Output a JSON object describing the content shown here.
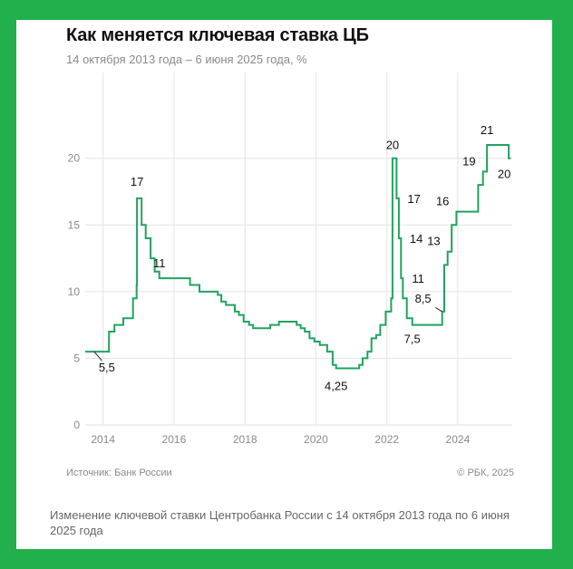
{
  "colors": {
    "background": "#21b04b",
    "line": "#21a35f",
    "grid": "#e3e3e3",
    "text": "#111111",
    "muted": "#8a8a8a"
  },
  "header": {
    "title": "Как меняется ключевая ставка ЦБ",
    "subtitle": "14 октября 2013 года – 6 июня 2025 года, %"
  },
  "footer": {
    "source": "Источник: Банк России",
    "copyright": "© РБК, 2025"
  },
  "caption": "Изменение ключевой ставки Центробанка России с 14 октября 2013 года по 6 июня 2025 года",
  "chart_data": {
    "type": "line",
    "step": true,
    "title": "Как меняется ключевая ставка ЦБ",
    "subtitle": "14 октября 2013 года – 6 июня 2025 года, %",
    "xlabel": "",
    "ylabel": "",
    "xlim": [
      "2013-07-01",
      "2025-07-15"
    ],
    "ylim": [
      0,
      21
    ],
    "grid": true,
    "x_ticks": [
      "2014",
      "2016",
      "2018",
      "2020",
      "2022",
      "2024"
    ],
    "x_ticks_at": [
      "2014-01-01",
      "2016-01-01",
      "2018-01-01",
      "2020-01-01",
      "2022-01-01",
      "2024-01-01"
    ],
    "y_ticks": [
      0,
      5,
      10,
      15,
      20
    ],
    "series": [
      {
        "x": [
          "2013-07-01",
          "2013-09-13",
          "2014-03-03",
          "2014-04-28",
          "2014-07-28",
          "2014-11-05",
          "2014-12-12",
          "2014-12-16",
          "2015-02-02",
          "2015-03-16",
          "2015-05-05",
          "2015-06-16",
          "2015-08-03",
          "2016-06-14",
          "2016-09-19",
          "2017-03-27",
          "2017-05-02",
          "2017-06-19",
          "2017-09-18",
          "2017-10-30",
          "2017-12-18",
          "2018-02-12",
          "2018-03-26",
          "2018-09-17",
          "2018-12-17",
          "2019-06-17",
          "2019-07-29",
          "2019-09-09",
          "2019-10-28",
          "2019-12-16",
          "2020-02-10",
          "2020-04-27",
          "2020-06-22",
          "2020-07-27",
          "2021-03-22",
          "2021-04-26",
          "2021-06-15",
          "2021-07-26",
          "2021-09-13",
          "2021-10-25",
          "2021-12-20",
          "2022-02-14",
          "2022-02-28",
          "2022-04-11",
          "2022-05-04",
          "2022-05-27",
          "2022-06-14",
          "2022-07-25",
          "2022-09-19",
          "2023-07-24",
          "2023-08-15",
          "2023-09-18",
          "2023-10-30",
          "2023-12-18",
          "2024-07-29",
          "2024-09-16",
          "2024-10-28",
          "2025-06-09",
          "2025-06-30"
        ],
        "values": [
          5.5,
          5.5,
          7.0,
          7.5,
          8.0,
          9.5,
          10.5,
          17.0,
          15.0,
          14.0,
          12.5,
          11.5,
          11.0,
          10.5,
          10.0,
          9.75,
          9.25,
          9.0,
          8.5,
          8.25,
          7.75,
          7.5,
          7.25,
          7.5,
          7.75,
          7.5,
          7.25,
          7.0,
          6.5,
          6.25,
          6.0,
          5.5,
          4.5,
          4.25,
          4.5,
          5.0,
          5.5,
          6.5,
          6.75,
          7.5,
          8.5,
          9.5,
          20.0,
          17.0,
          14.0,
          11.0,
          9.5,
          8.0,
          7.5,
          8.5,
          12.0,
          13.0,
          15.0,
          16.0,
          18.0,
          19.0,
          21.0,
          20.0,
          20.0
        ]
      }
    ],
    "annotations": [
      {
        "text": "5,5",
        "x": "2013-10-01",
        "y": 5.5
      },
      {
        "text": "17",
        "x": "2014-12-16",
        "y": 17
      },
      {
        "text": "11",
        "x": "2015-08-03",
        "y": 11
      },
      {
        "text": "4,25",
        "x": "2020-07-27",
        "y": 4.25
      },
      {
        "text": "20",
        "x": "2022-02-28",
        "y": 20
      },
      {
        "text": "17",
        "x": "2022-04-11",
        "y": 17
      },
      {
        "text": "14",
        "x": "2022-05-04",
        "y": 14
      },
      {
        "text": "11",
        "x": "2022-05-27",
        "y": 11
      },
      {
        "text": "7,5",
        "x": "2022-09-19",
        "y": 7.5
      },
      {
        "text": "8,5",
        "x": "2023-07-24",
        "y": 8.5
      },
      {
        "text": "13",
        "x": "2023-09-18",
        "y": 13
      },
      {
        "text": "16",
        "x": "2023-12-18",
        "y": 16
      },
      {
        "text": "19",
        "x": "2024-09-16",
        "y": 19
      },
      {
        "text": "21",
        "x": "2024-10-28",
        "y": 21
      },
      {
        "text": "20",
        "x": "2025-06-09",
        "y": 20
      }
    ]
  }
}
